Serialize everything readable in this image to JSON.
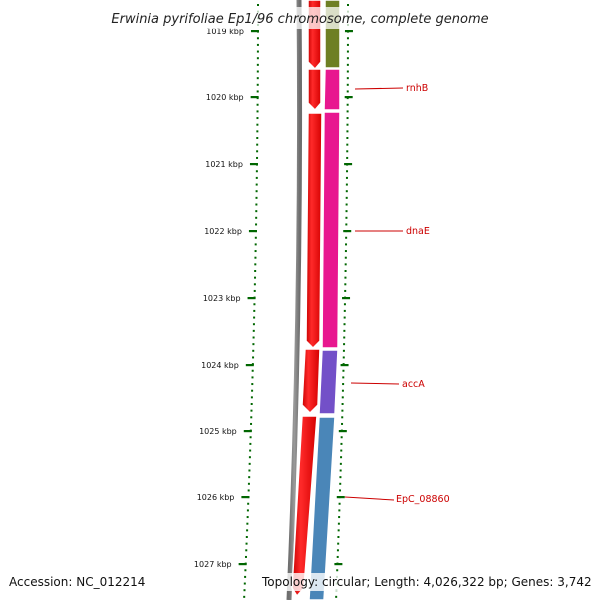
{
  "title": "Erwinia pyrifoliae Ep1/96 chromosome, complete genome",
  "footer": {
    "accession": "Accession: NC_012214",
    "topology": "Topology: circular; Length: 4,026,322 bp; Genes: 3,742"
  },
  "axis": {
    "unit": "kbp",
    "ticks": [
      "1019 kbp",
      "1020 kbp",
      "1021 kbp",
      "1022 kbp",
      "1023 kbp",
      "1024 kbp",
      "1025 kbp",
      "1026 kbp",
      "1027 kbp"
    ]
  },
  "genes": [
    {
      "name": "rnhB",
      "color": "#e8178f"
    },
    {
      "name": "dnaE",
      "color": "#e8178f"
    },
    {
      "name": "accA",
      "color": "#7350c8"
    },
    {
      "name": "EpC_08860",
      "color": "#4a86b8"
    }
  ],
  "colors": {
    "forward_strand": "#ff0000",
    "backbone": "#8c8c8c",
    "tick": "#006600",
    "label": "#cc0000",
    "olive_segment": "#6e7f23"
  }
}
